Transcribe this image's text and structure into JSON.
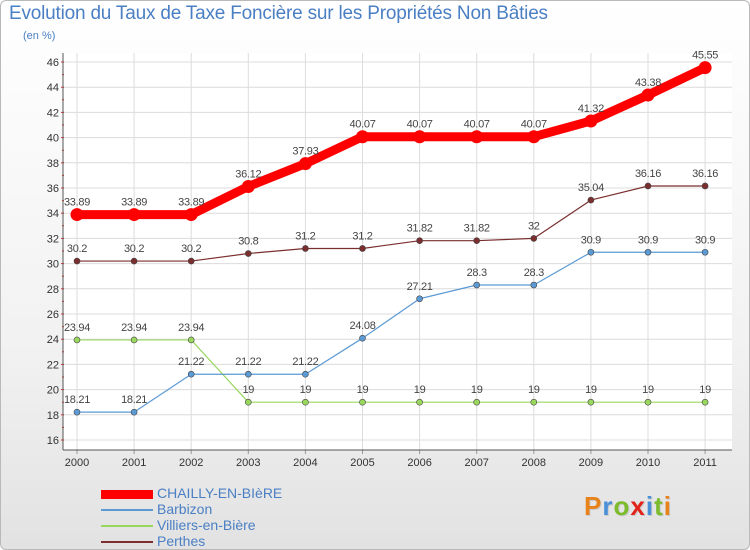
{
  "title": "Evolution du Taux de Taxe Foncière sur les Propriétés Non Bâties",
  "unit_label": "(en %)",
  "logo": {
    "text": "Proxiti",
    "letter_colors": [
      "#e8831c",
      "#4a90d9",
      "#7cbc2c",
      "#e2231a",
      "#4a90d9",
      "#7cbc2c",
      "#e8831c"
    ]
  },
  "chart_data": {
    "type": "line",
    "title": "Evolution du Taux de Taxe Foncière sur les Propriétés Non Bâties",
    "ylabel": "(en %)",
    "xlabel": "",
    "x": [
      "2000",
      "2001",
      "2002",
      "2003",
      "2004",
      "2005",
      "2006",
      "2007",
      "2008",
      "2009",
      "2010",
      "2011"
    ],
    "ylim": [
      16,
      46
    ],
    "yticks": [
      16,
      18,
      20,
      22,
      24,
      26,
      28,
      30,
      32,
      34,
      36,
      38,
      40,
      42,
      44,
      46
    ],
    "grid": true,
    "legend_position": "bottom-left",
    "series": [
      {
        "name": "CHAILLY-EN-BIèRE",
        "color": "#ff0000",
        "values": [
          33.89,
          33.89,
          33.89,
          36.12,
          37.93,
          40.07,
          40.07,
          40.07,
          40.07,
          41.32,
          43.38,
          45.55
        ],
        "labels": [
          "33.89",
          "33.89",
          "33.89",
          "36.12",
          "37.93",
          "40.07",
          "40.07",
          "40.07",
          "40.07",
          "41.32",
          "43.38",
          "45.55"
        ]
      },
      {
        "name": "Barbizon",
        "color": "#5b9ad5",
        "values": [
          18.21,
          18.21,
          21.22,
          21.22,
          21.22,
          24.08,
          27.21,
          28.3,
          28.3,
          30.9,
          30.9,
          30.9
        ],
        "labels": [
          "18.21",
          "18.21",
          "21.22",
          "21.22",
          "21.22",
          "24.08",
          "27.21",
          "28.3",
          "28.3",
          "30.9",
          "30.9",
          "30.9"
        ]
      },
      {
        "name": "Villiers-en-Bière",
        "color": "#99d75e",
        "values": [
          23.94,
          23.94,
          23.94,
          19,
          19,
          19,
          19,
          19,
          19,
          19,
          19,
          19
        ],
        "labels": [
          "23.94",
          "23.94",
          "23.94",
          "19",
          "19",
          "19",
          "19",
          "19",
          "19",
          "19",
          "19",
          "19"
        ]
      },
      {
        "name": "Perthes",
        "color": "#7b2e2e",
        "values": [
          30.2,
          30.2,
          30.2,
          30.8,
          31.2,
          31.2,
          31.82,
          31.82,
          32,
          35.04,
          36.16,
          36.16
        ],
        "labels": [
          "30.2",
          "30.2",
          "30.2",
          "30.8",
          "31.2",
          "31.2",
          "31.82",
          "31.82",
          "32",
          "35.04",
          "36.16",
          "36.16"
        ]
      }
    ]
  }
}
